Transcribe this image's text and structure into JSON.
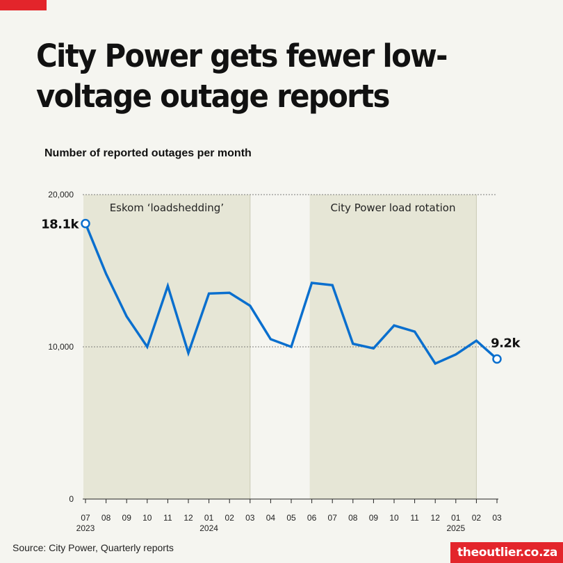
{
  "header": {
    "title": "City Power gets fewer low-voltage outage reports",
    "subtitle": "Number of reported outages per month"
  },
  "footer": {
    "source": "Source: City Power, Quarterly reports",
    "logo": "theoutlier.co.za"
  },
  "colors": {
    "accent": "#e3252b",
    "line": "#0a6fce",
    "shade": "#e6e6d6"
  },
  "chart_data": {
    "type": "line",
    "title": "City Power gets fewer low-voltage outage reports",
    "ylabel": "Number of reported outages per month",
    "xlabel": "",
    "ylim": [
      0,
      20000
    ],
    "yticks": [
      {
        "value": 0,
        "label": "0"
      },
      {
        "value": 10000,
        "label": "10,000"
      },
      {
        "value": 20000,
        "label": "20,000"
      }
    ],
    "categories": [
      "07",
      "08",
      "09",
      "10",
      "11",
      "12",
      "01",
      "02",
      "03",
      "04",
      "05",
      "06",
      "07",
      "08",
      "09",
      "10",
      "11",
      "12",
      "01",
      "02",
      "03"
    ],
    "year_labels": [
      {
        "index": 0,
        "label": "2023"
      },
      {
        "index": 6,
        "label": "2024"
      },
      {
        "index": 18,
        "label": "2025"
      }
    ],
    "series": [
      {
        "name": "Reported outages",
        "values": [
          18100,
          14800,
          12000,
          10000,
          14000,
          9600,
          13500,
          13550,
          12700,
          10500,
          10000,
          14200,
          14050,
          10200,
          9900,
          11400,
          11000,
          8900,
          9500,
          10400,
          9200
        ]
      }
    ],
    "annotations": [
      {
        "label": "Eskom ‘loadshedding’",
        "start_index": 0,
        "end_index": 8
      },
      {
        "label": "City Power load rotation",
        "start_index": 11,
        "end_index": 19
      }
    ],
    "end_labels": {
      "first": "18.1k",
      "last": "9.2k"
    }
  }
}
